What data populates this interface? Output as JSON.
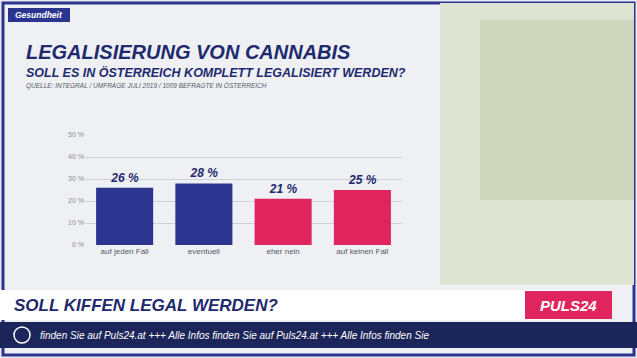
{
  "chart_data": {
    "type": "bar",
    "title": "LEGALISIERUNG VON CANNABIS",
    "subtitle": "SOLL ES IN ÖSTERREICH KOMPLETT LEGALISIERT WERDEN?",
    "categories": [
      "auf jeden Fall",
      "eventuell",
      "eher nein",
      "auf keinen Fall"
    ],
    "values": [
      26,
      28,
      21,
      25
    ],
    "value_labels": [
      "26 %",
      "28 %",
      "21 %",
      "25 %"
    ],
    "colors": [
      "#2b3590",
      "#2b3590",
      "#e0245e",
      "#e0245e"
    ],
    "data_labels": true,
    "ylim": [
      0,
      50
    ],
    "yticks": [
      {
        "value": 0,
        "label": "0 %"
      },
      {
        "value": 10,
        "label": "10 %"
      },
      {
        "value": 20,
        "label": "20 %"
      },
      {
        "value": 30,
        "label": "30 %"
      },
      {
        "value": 40,
        "label": "40 %"
      },
      {
        "value": 50,
        "label": "50 %"
      }
    ],
    "grid": true,
    "annotations": [
      "QUELLE: INTEGRAL / UMFRAGE JULI 2019 / 1009 BEFRAGTE IN ÖSTERREICH",
      "Gesundheit",
      "SOLL KIFFEN LEGAL WERDEN?",
      "PULS24",
      "finden Sie auf Puls24.at +++ Alle Infos finden Sie auf Puls24.at +++ Alle Infos finden Sie"
    ]
  }
}
